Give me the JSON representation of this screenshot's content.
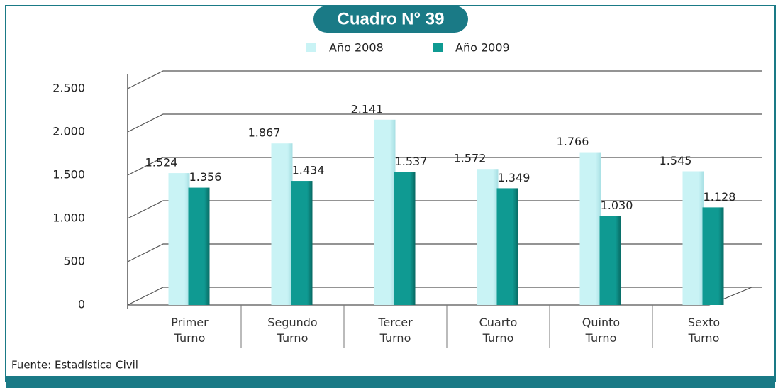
{
  "chart_data": {
    "type": "bar",
    "title": "Cuadro N° 39",
    "source": "Fuente: Estadística Civil",
    "categories": [
      "Primer Turno",
      "Segundo Turno",
      "Tercer Turno",
      "Cuarto Turno",
      "Quinto Turno",
      "Sexto Turno"
    ],
    "series": [
      {
        "name": "Año 2008",
        "color": "#c9f3f5",
        "values": [
          1524,
          1867,
          2141,
          1572,
          1766,
          1545
        ],
        "value_labels": [
          "1.524",
          "1.867",
          "2.141",
          "1.572",
          "1.766",
          "1.545"
        ]
      },
      {
        "name": "Año 2009",
        "color": "#0f9a92",
        "values": [
          1356,
          1434,
          1537,
          1349,
          1030,
          1128
        ],
        "value_labels": [
          "1.356",
          "1.434",
          "1.537",
          "1.349",
          "1.030",
          "1.128"
        ]
      }
    ],
    "ylim": [
      0,
      2500
    ],
    "yticks": [
      0,
      500,
      {
        "value": 1000,
        "label": "1.000"
      },
      {
        "value": 1500,
        "label": "1.500"
      },
      {
        "value": 2000,
        "label": "2.000"
      },
      {
        "value": 2500,
        "label": "2.500"
      }
    ],
    "grid": true,
    "legend": "top"
  }
}
